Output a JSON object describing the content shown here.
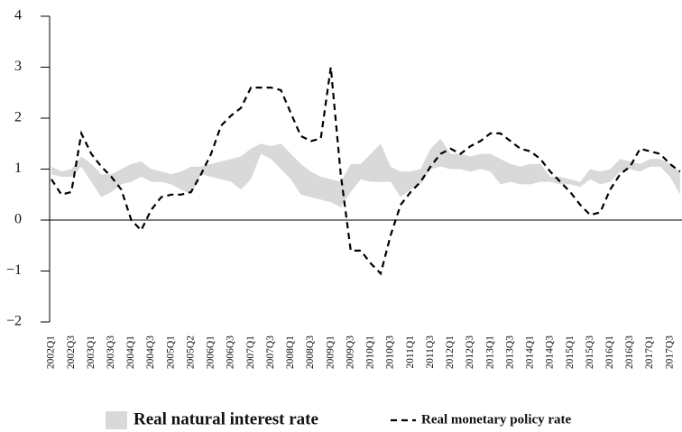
{
  "chart_data": {
    "type": "band-line",
    "categories": [
      "2002Q1",
      null,
      "2002Q3",
      null,
      "2003Q1",
      null,
      "2003Q3",
      null,
      "2004Q1",
      null,
      "2004Q3",
      null,
      "2005Q1",
      null,
      "2005Q2",
      null,
      "2006Q1",
      null,
      "2006Q3",
      null,
      "2007Q1",
      null,
      "2007Q3",
      null,
      "2008Q1",
      null,
      "2008Q3",
      null,
      "2009Q1",
      null,
      "2009Q3",
      null,
      "2010Q1",
      null,
      "2010Q3",
      null,
      "2011Q1",
      null,
      "2011Q3",
      null,
      "2012Q1",
      null,
      "2012Q3",
      null,
      "2013Q1",
      null,
      "2013Q3",
      null,
      "2014Q1",
      null,
      "2014Q3",
      null,
      "2015Q1",
      null,
      "2015Q3",
      null,
      "2016Q1",
      null,
      "2016Q3",
      null,
      "2017Q1",
      null,
      "2017Q3",
      null
    ],
    "series": [
      {
        "name": "Real natural interest rate",
        "color": "#d9d9d9",
        "low": [
          0.9,
          0.85,
          0.85,
          1.05,
          0.75,
          0.45,
          0.55,
          0.7,
          0.75,
          0.85,
          0.75,
          0.75,
          0.7,
          0.6,
          0.5,
          0.9,
          0.85,
          0.8,
          0.75,
          0.6,
          0.8,
          1.3,
          1.2,
          1.0,
          0.8,
          0.5,
          0.45,
          0.4,
          0.35,
          0.25,
          0.55,
          0.8,
          0.75,
          0.75,
          0.75,
          0.45,
          0.6,
          0.7,
          1.0,
          1.05,
          1.0,
          1.0,
          0.95,
          1.0,
          0.95,
          0.7,
          0.75,
          0.7,
          0.7,
          0.75,
          0.75,
          0.7,
          0.7,
          0.65,
          0.8,
          0.7,
          0.75,
          0.95,
          1.0,
          0.95,
          1.05,
          1.05,
          0.85,
          0.5
        ],
        "high": [
          1.05,
          0.95,
          1.0,
          1.25,
          1.1,
          0.9,
          0.9,
          1.0,
          1.1,
          1.15,
          1.0,
          0.95,
          0.9,
          0.95,
          1.05,
          1.05,
          1.1,
          1.15,
          1.2,
          1.25,
          1.4,
          1.5,
          1.45,
          1.5,
          1.3,
          1.1,
          0.95,
          0.85,
          0.8,
          0.75,
          1.1,
          1.1,
          1.3,
          1.5,
          1.05,
          0.95,
          0.95,
          1.0,
          1.4,
          1.6,
          1.3,
          1.3,
          1.25,
          1.3,
          1.3,
          1.2,
          1.1,
          1.05,
          1.1,
          1.1,
          0.85,
          0.85,
          0.8,
          0.75,
          1.0,
          0.95,
          1.0,
          1.2,
          1.15,
          1.1,
          1.2,
          1.2,
          1.1,
          0.95
        ]
      },
      {
        "name": "Real monetary policy rate",
        "color": "#000000",
        "dashed": true,
        "values": [
          0.8,
          0.5,
          0.55,
          1.7,
          1.3,
          1.05,
          0.85,
          0.6,
          0.0,
          -0.2,
          0.2,
          0.45,
          0.5,
          0.5,
          0.55,
          0.9,
          1.3,
          1.85,
          2.05,
          2.2,
          2.6,
          2.6,
          2.6,
          2.55,
          2.1,
          1.65,
          1.55,
          1.6,
          3.0,
          0.9,
          -0.6,
          -0.6,
          -0.85,
          -1.05,
          -0.3,
          0.3,
          0.55,
          0.75,
          1.05,
          1.3,
          1.4,
          1.3,
          1.45,
          1.55,
          1.7,
          1.7,
          1.55,
          1.4,
          1.35,
          1.2,
          0.95,
          0.75,
          0.55,
          0.3,
          0.1,
          0.15,
          0.6,
          0.9,
          1.05,
          1.4,
          1.35,
          1.3,
          1.1,
          0.95
        ]
      }
    ],
    "ylim": [
      -2,
      4
    ],
    "yticks": [
      {
        "value": -2,
        "label": "−2"
      },
      {
        "value": -1,
        "label": "−1"
      },
      0,
      1,
      2,
      3,
      4
    ],
    "legend": "bottom"
  }
}
